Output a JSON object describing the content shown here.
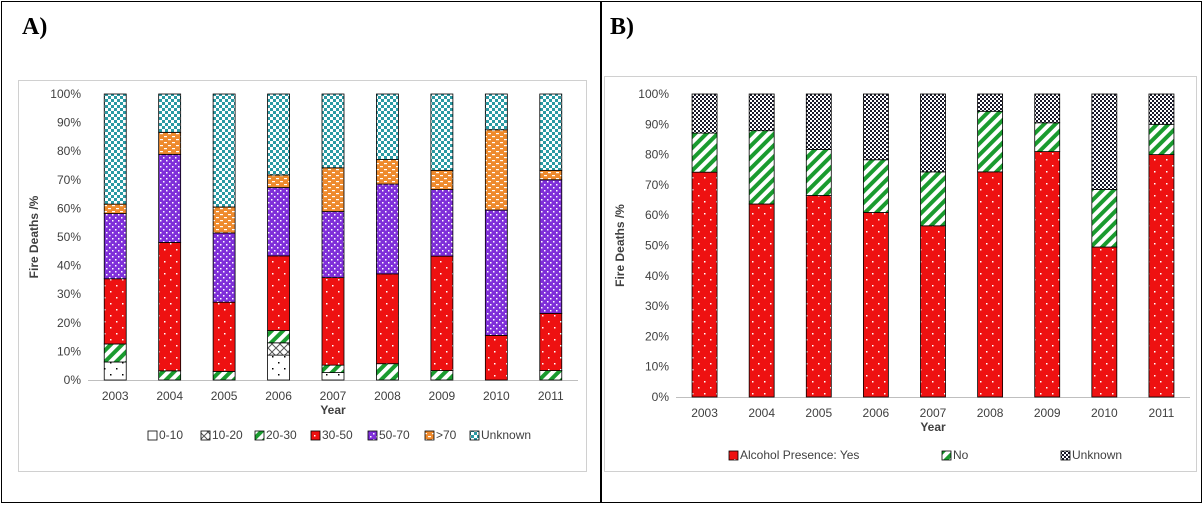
{
  "panels": [
    {
      "label": "A)"
    },
    {
      "label": "B)"
    }
  ],
  "chart_data": [
    {
      "type": "bar",
      "stacked": true,
      "xlabel": "Year",
      "ylabel": "Fire Deaths /%",
      "ylim": [
        0,
        100
      ],
      "yticks": [
        "0%",
        "10%",
        "20%",
        "30%",
        "40%",
        "50%",
        "60%",
        "70%",
        "80%",
        "90%",
        "100%"
      ],
      "categories": [
        "2003",
        "2004",
        "2005",
        "2006",
        "2007",
        "2008",
        "2009",
        "2010",
        "2011"
      ],
      "legend_position": "bottom",
      "series": [
        {
          "name": "0-10",
          "color": "#ffffff",
          "pattern": "dots",
          "values": [
            6.3,
            0,
            0,
            8.7,
            2.6,
            0,
            0,
            0,
            0
          ]
        },
        {
          "name": "10-20",
          "color": "#ffffff",
          "pattern": "diagonal-cross",
          "values": [
            0,
            0,
            0,
            4.3,
            0,
            0,
            0,
            0,
            0
          ]
        },
        {
          "name": "20-30",
          "color": "#1a9b2f",
          "pattern": "wide-diagonal",
          "values": [
            6.3,
            3.2,
            3.0,
            4.3,
            2.6,
            5.7,
            3.3,
            0,
            3.3
          ]
        },
        {
          "name": "30-50",
          "color": "#ee1111",
          "pattern": "dots",
          "values": [
            22.8,
            44.9,
            24.2,
            26.1,
            30.6,
            31.4,
            40.0,
            15.6,
            20.0
          ]
        },
        {
          "name": "50-70",
          "color": "#7f2fd9",
          "pattern": "dots",
          "values": [
            22.8,
            30.8,
            24.2,
            23.9,
            23.1,
            31.4,
            23.3,
            43.8,
            46.7
          ]
        },
        {
          "name": ">70",
          "color": "#ee8a2d",
          "pattern": "dashes",
          "values": [
            3.3,
            7.7,
            9.1,
            4.4,
            15.3,
            8.6,
            6.7,
            28.1,
            3.3
          ]
        },
        {
          "name": "Unknown",
          "color": "#2a9aa3",
          "pattern": "checker",
          "values": [
            38.5,
            13.4,
            39.5,
            28.3,
            25.8,
            22.9,
            26.7,
            12.5,
            26.7
          ]
        }
      ]
    },
    {
      "type": "bar",
      "stacked": true,
      "xlabel": "Year",
      "ylabel": "Fire Deaths /%",
      "ylim": [
        0,
        100
      ],
      "yticks": [
        "0%",
        "10%",
        "20%",
        "30%",
        "40%",
        "50%",
        "60%",
        "70%",
        "80%",
        "90%",
        "100%"
      ],
      "categories": [
        "2003",
        "2004",
        "2005",
        "2006",
        "2007",
        "2008",
        "2009",
        "2010",
        "2011"
      ],
      "legend_position": "bottom",
      "series": [
        {
          "name": "Alcohol Presence: Yes",
          "color": "#ee1111",
          "pattern": "dots",
          "values": [
            74.2,
            63.7,
            66.5,
            60.9,
            56.5,
            74.3,
            81.0,
            49.5,
            80.0
          ]
        },
        {
          "name": "No",
          "color": "#1a9b2f",
          "pattern": "wide-diagonal",
          "values": [
            12.9,
            24.2,
            15.2,
            17.4,
            17.8,
            20.0,
            9.5,
            19.0,
            10.0
          ]
        },
        {
          "name": "Unknown",
          "color": "#1a1a2a",
          "pattern": "checker-dense",
          "values": [
            12.9,
            12.1,
            18.3,
            21.7,
            25.7,
            5.7,
            9.5,
            31.5,
            10.0
          ]
        }
      ]
    }
  ]
}
